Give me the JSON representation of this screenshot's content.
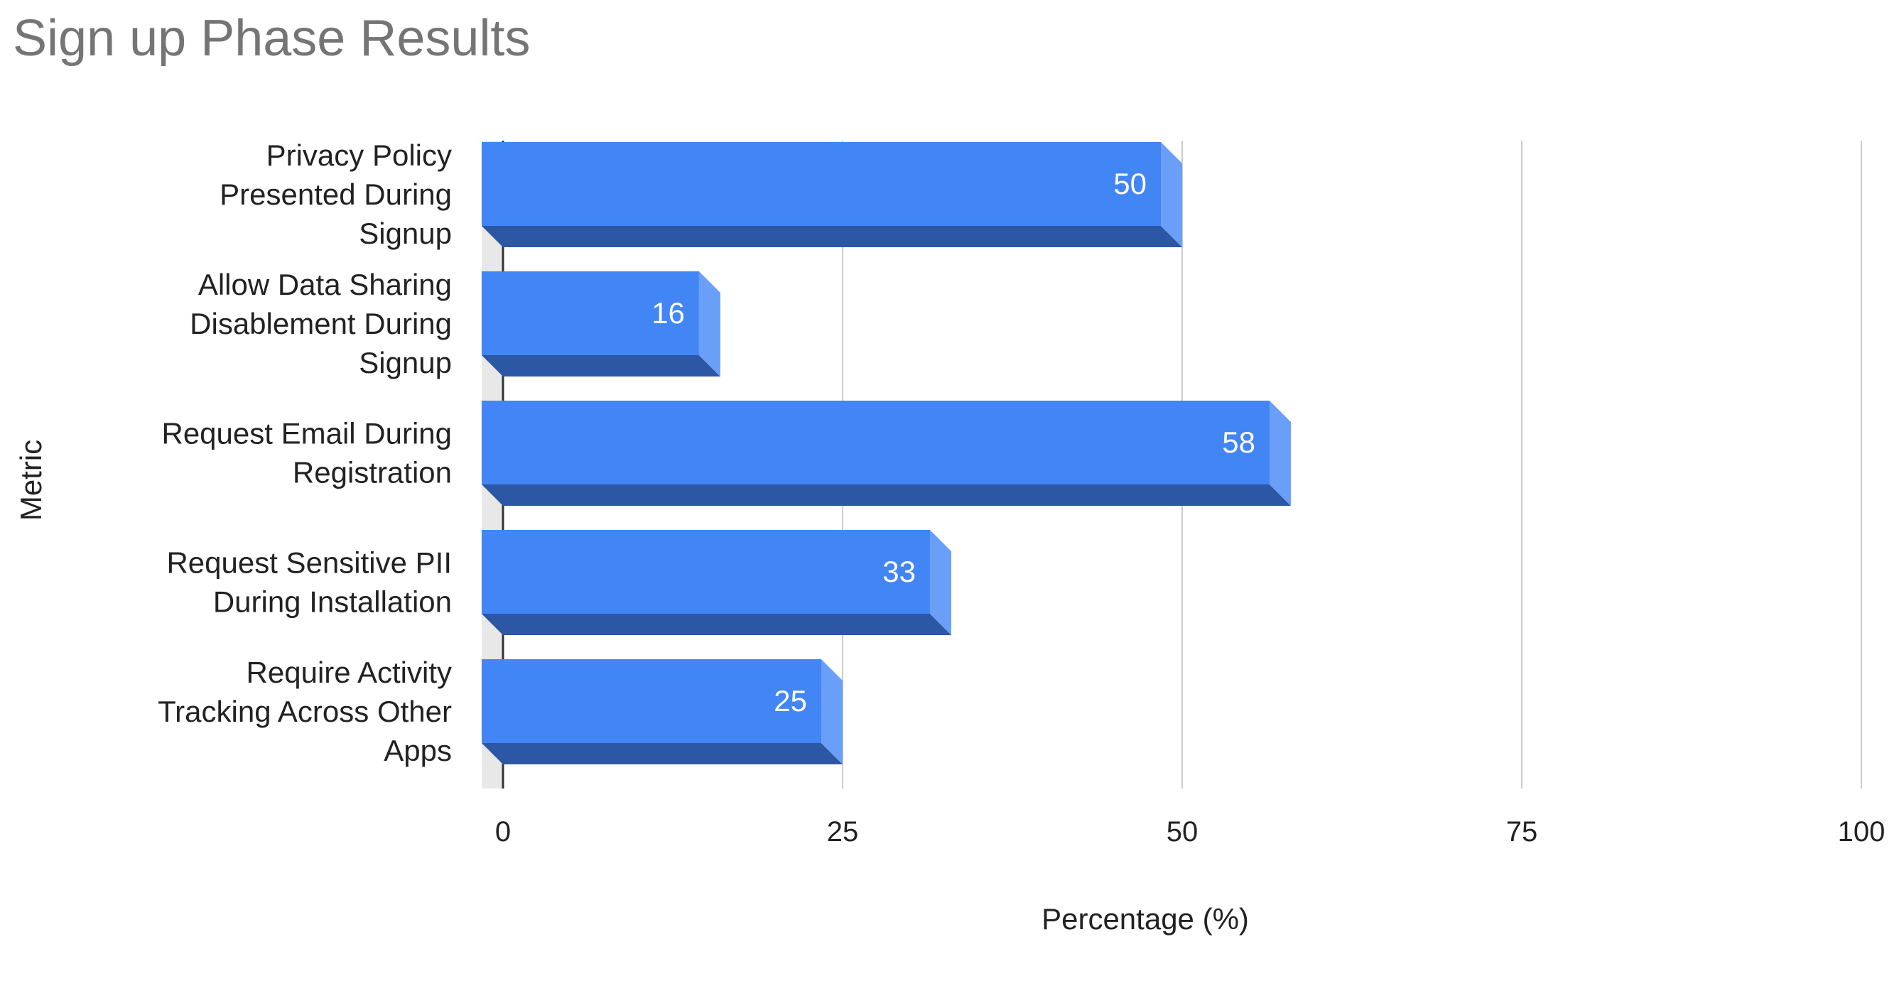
{
  "chart_data": {
    "type": "bar",
    "orientation": "horizontal",
    "style": "3d",
    "title": "Sign up Phase Results",
    "xlabel": "Percentage (%)",
    "ylabel": "Metric",
    "xlim": [
      0,
      100
    ],
    "xticks": [
      0,
      25,
      50,
      75,
      100
    ],
    "grid": true,
    "legend": "none",
    "categories": [
      "Privacy Policy Presented During Signup",
      "Allow Data Sharing Disablement During Signup",
      "Request Email During Registration",
      "Request Sensitive PII During Installation",
      "Require Activity Tracking Across Other Apps"
    ],
    "category_label_lines": [
      [
        "Privacy Policy",
        "Presented During",
        "Signup"
      ],
      [
        "Allow Data Sharing",
        "Disablement During",
        "Signup"
      ],
      [
        "Request Email During",
        "Registration"
      ],
      [
        "Request Sensitive PII",
        "During Installation"
      ],
      [
        "Require Activity",
        "Tracking Across Other",
        "Apps"
      ]
    ],
    "values": [
      50,
      16,
      58,
      33,
      25
    ],
    "data_labels": [
      "50",
      "16",
      "58",
      "33",
      "25"
    ],
    "colors": {
      "bar_front": "#4285f4",
      "bar_bottom": "#2b57a5",
      "bar_side": "#6a9ff7",
      "title": "#757575",
      "text": "#222222",
      "label_on_bar": "#ffffff",
      "grid": "#cccccc",
      "axis": "#333333",
      "wall": "#e8e8e8"
    }
  }
}
